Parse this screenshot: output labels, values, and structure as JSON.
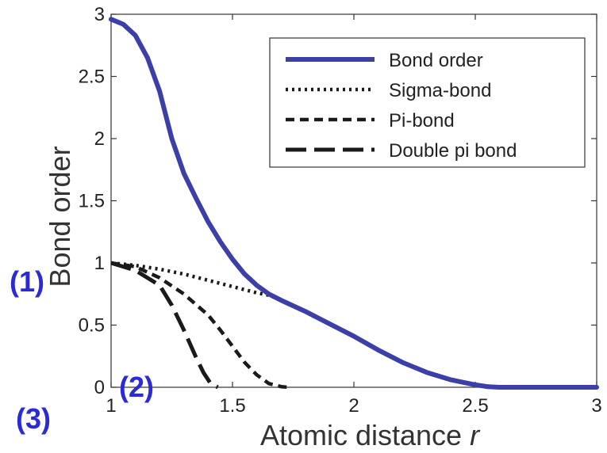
{
  "chart_data": {
    "type": "line",
    "xlabel": "Atomic distance",
    "xlabel_italic": "r",
    "ylabel": "Bond order",
    "xlim": [
      1,
      3
    ],
    "ylim": [
      0,
      3
    ],
    "x_ticks": [
      "1",
      "1.5",
      "2",
      "2.5",
      "3"
    ],
    "y_ticks": [
      "0",
      "0.5",
      "1",
      "1.5",
      "2",
      "2.5",
      "3"
    ],
    "grid": false,
    "legend_position": "top-right",
    "series": [
      {
        "name": "Bond order",
        "color": "#3b3fa8",
        "style": "solid",
        "x": [
          1.0,
          1.05,
          1.1,
          1.15,
          1.2,
          1.25,
          1.3,
          1.35,
          1.4,
          1.45,
          1.5,
          1.55,
          1.6,
          1.65,
          1.7,
          1.8,
          1.9,
          2.0,
          2.1,
          2.2,
          2.3,
          2.4,
          2.5,
          2.55,
          2.6,
          2.7,
          2.8,
          2.9,
          3.0
        ],
        "y": [
          2.96,
          2.92,
          2.83,
          2.65,
          2.38,
          2.0,
          1.72,
          1.52,
          1.33,
          1.17,
          1.03,
          0.91,
          0.82,
          0.75,
          0.7,
          0.61,
          0.51,
          0.41,
          0.3,
          0.2,
          0.12,
          0.06,
          0.02,
          0.005,
          0.0,
          0.0,
          0.0,
          0.0,
          0.0
        ]
      },
      {
        "name": "Sigma-bond",
        "color": "#1a1a1a",
        "style": "dotted",
        "x": [
          1.0,
          1.1,
          1.2,
          1.3,
          1.4,
          1.5,
          1.6,
          1.65,
          1.7,
          1.8,
          1.9,
          2.0,
          2.1,
          2.2,
          2.3,
          2.4,
          2.5,
          2.6
        ],
        "y": [
          1.0,
          0.98,
          0.95,
          0.91,
          0.86,
          0.81,
          0.76,
          0.74,
          0.7,
          0.61,
          0.51,
          0.41,
          0.3,
          0.2,
          0.12,
          0.06,
          0.02,
          0.0
        ]
      },
      {
        "name": "Pi-bond",
        "color": "#1a1a1a",
        "style": "dashed",
        "x": [
          1.0,
          1.1,
          1.2,
          1.3,
          1.4,
          1.45,
          1.5,
          1.55,
          1.6,
          1.65,
          1.7,
          1.73
        ],
        "y": [
          1.0,
          0.97,
          0.88,
          0.75,
          0.58,
          0.46,
          0.33,
          0.2,
          0.1,
          0.03,
          0.005,
          0.0
        ]
      },
      {
        "name": "Double pi bond",
        "color": "#1a1a1a",
        "style": "longdash",
        "x": [
          1.0,
          1.1,
          1.2,
          1.25,
          1.3,
          1.35,
          1.38,
          1.41,
          1.44
        ],
        "y": [
          1.0,
          0.94,
          0.82,
          0.66,
          0.46,
          0.24,
          0.12,
          0.03,
          0.0
        ]
      }
    ]
  },
  "markers": {
    "m1": "(1)",
    "m2": "(2)",
    "m3": "(3)"
  }
}
